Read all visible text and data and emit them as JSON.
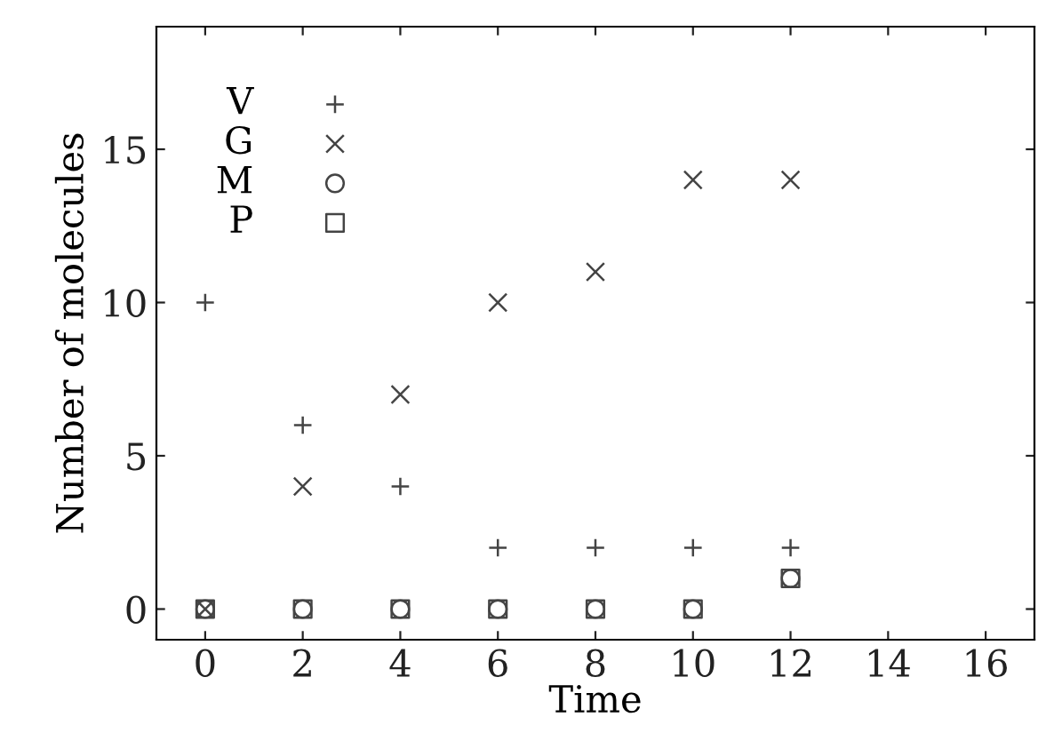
{
  "chart_data": {
    "type": "scatter",
    "xlabel": "Time",
    "ylabel": "Number of molecules",
    "x": [
      0,
      2,
      4,
      6,
      8,
      10,
      12
    ],
    "series": [
      {
        "name": "V",
        "color": "#444444",
        "marker": "plus",
        "values": [
          10,
          6,
          4,
          2,
          2,
          2,
          2
        ]
      },
      {
        "name": "G",
        "color": "#444444",
        "marker": "cross",
        "values": [
          0,
          4,
          7,
          10,
          11,
          14,
          14
        ]
      },
      {
        "name": "M",
        "color": "#444444",
        "marker": "circle",
        "values": [
          0,
          0,
          0,
          0,
          0,
          0,
          1
        ]
      },
      {
        "name": "P",
        "color": "#444444",
        "marker": "square",
        "values": [
          0,
          0,
          0,
          0,
          0,
          0,
          1
        ]
      }
    ],
    "xlim": [
      -1,
      17
    ],
    "ylim": [
      -1,
      19
    ],
    "xticks": [
      0,
      2,
      4,
      6,
      8,
      10,
      12,
      14,
      16
    ],
    "yticks": [
      0,
      5,
      10,
      15
    ],
    "grid": false,
    "legend": "top left"
  }
}
